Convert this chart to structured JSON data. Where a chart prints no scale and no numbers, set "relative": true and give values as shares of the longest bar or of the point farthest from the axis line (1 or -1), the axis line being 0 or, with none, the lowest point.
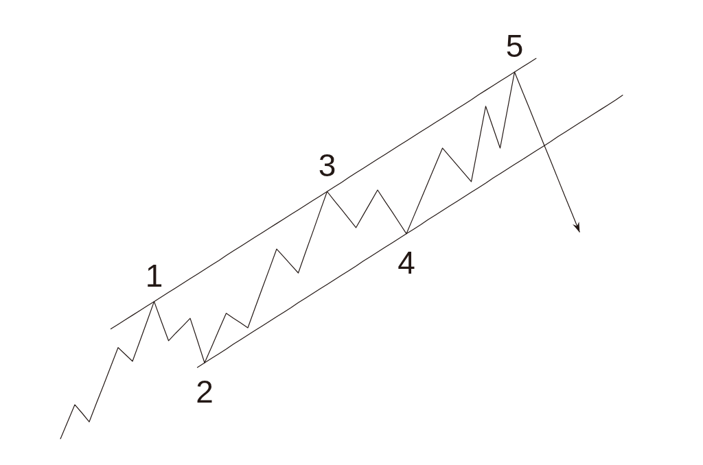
{
  "chart_data": {
    "type": "line",
    "relative": true,
    "categories": [
      null,
      null,
      null,
      null,
      null,
      null,
      null,
      null,
      null,
      null,
      null,
      null,
      null,
      null,
      null,
      null,
      null,
      null,
      null,
      null,
      null,
      null,
      null,
      null,
      null,
      null,
      null,
      null,
      null,
      null,
      null,
      null,
      null,
      null,
      null,
      null,
      null,
      null,
      null,
      null,
      null,
      null,
      null,
      null,
      null,
      null,
      null,
      null,
      null,
      null,
      null,
      null,
      null,
      null,
      null,
      null,
      null,
      null,
      null,
      null,
      null,
      null,
      null,
      null,
      null,
      null,
      null,
      null,
      null,
      null,
      null,
      null,
      null,
      null,
      null,
      null,
      null,
      null,
      null
    ],
    "series": [
      {
        "color": "#231815",
        "values": [
          0,
          0.045,
          0.09,
          0.068,
          0.045,
          0.094,
          0.142,
          0.191,
          0.24,
          0.222,
          0.204,
          0.256,
          0.308,
          0.361,
          0.309,
          0.258,
          0.278,
          0.297,
          0.317,
          0.259,
          0.2,
          0.243,
          0.287,
          0.33,
          0.317,
          0.305,
          0.292,
          0.344,
          0.396,
          0.447,
          0.499,
          0.478,
          0.457,
          0.436,
          0.49,
          0.543,
          0.597,
          0.65,
          0.626,
          0.603,
          0.579,
          0.555,
          0.588,
          0.621,
          0.654,
          0.625,
          0.597,
          0.568,
          0.539,
          0.584,
          0.629,
          0.674,
          0.719,
          0.764,
          0.742,
          0.72,
          0.698,
          0.676,
          0.775,
          0.874,
          0.819,
          0.764,
          0.864,
          0.964,
          0.917,
          0.871,
          0.824,
          0.777,
          0.731,
          0.684,
          0.637,
          0.591,
          0.544,
          null,
          null,
          null,
          null,
          null,
          null
        ]
      },
      {
        "color": "#231815",
        "values": [
          null,
          null,
          null,
          null,
          null,
          null,
          null,
          0.289,
          0.301,
          0.313,
          0.325,
          0.337,
          0.349,
          0.361,
          0.373,
          0.385,
          0.397,
          0.409,
          0.421,
          0.433,
          0.445,
          0.457,
          0.469,
          0.482,
          0.494,
          0.506,
          0.518,
          0.53,
          0.542,
          0.554,
          0.566,
          0.578,
          0.59,
          0.602,
          0.614,
          0.626,
          0.638,
          0.65,
          0.662,
          0.674,
          0.687,
          0.699,
          0.711,
          0.723,
          0.735,
          0.747,
          0.759,
          0.771,
          0.783,
          0.795,
          0.807,
          0.819,
          0.831,
          0.843,
          0.855,
          0.867,
          0.879,
          0.891,
          0.904,
          0.916,
          0.928,
          0.94,
          0.952,
          0.964,
          0.976,
          0.988,
          1,
          null,
          null,
          null,
          null,
          null,
          null,
          null,
          null,
          null,
          null,
          null,
          null
        ]
      },
      {
        "color": "#231815",
        "values": [
          null,
          null,
          null,
          null,
          null,
          null,
          null,
          null,
          null,
          null,
          null,
          null,
          null,
          null,
          null,
          null,
          null,
          null,
          null,
          0.188,
          0.2,
          0.212,
          0.224,
          0.236,
          0.249,
          0.261,
          0.273,
          0.285,
          0.297,
          0.309,
          0.321,
          0.333,
          0.345,
          0.358,
          0.37,
          0.382,
          0.394,
          0.406,
          0.418,
          0.43,
          0.442,
          0.454,
          0.467,
          0.479,
          0.491,
          0.503,
          0.515,
          0.527,
          0.539,
          0.551,
          0.563,
          0.576,
          0.588,
          0.6,
          0.612,
          0.624,
          0.636,
          0.648,
          0.66,
          0.672,
          0.685,
          0.697,
          0.709,
          0.721,
          0.733,
          0.745,
          0.757,
          0.769,
          0.781,
          0.794,
          0.806,
          0.818,
          0.83,
          0.842,
          0.854,
          0.866,
          0.878,
          0.89,
          0.903
        ]
      }
    ],
    "annotations": [
      "1",
      "2",
      "3",
      "4",
      "5"
    ]
  }
}
